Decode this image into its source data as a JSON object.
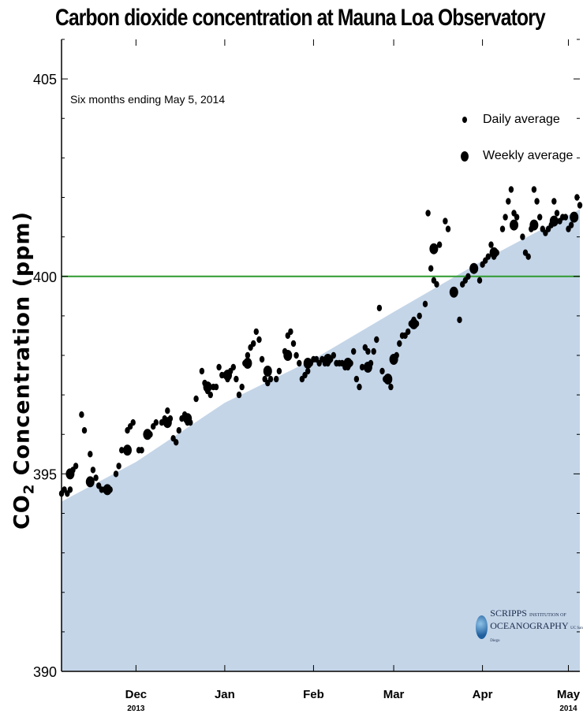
{
  "chart_data": {
    "type": "scatter",
    "title": "Carbon dioxide concentration at Mauna Loa Observatory",
    "subtitle": "Six months ending May 5, 2014",
    "ylabel_main": "CO",
    "ylabel_sub": "2",
    "ylabel_rest": " Concentration (ppm)",
    "ylim": [
      390,
      406
    ],
    "yticks": [
      390,
      395,
      400,
      405
    ],
    "xlim": [
      "2013-11-05",
      "2014-05-05"
    ],
    "xticks": [
      {
        "label": "Dec",
        "year": "2013",
        "date": "2013-12-01"
      },
      {
        "label": "Jan",
        "year": "",
        "date": "2014-01-01"
      },
      {
        "label": "Feb",
        "year": "",
        "date": "2014-02-01"
      },
      {
        "label": "Mar",
        "year": "",
        "date": "2014-03-01"
      },
      {
        "label": "Apr",
        "year": "",
        "date": "2014-04-01"
      },
      {
        "label": "May",
        "year": "2014",
        "date": "2014-05-01"
      }
    ],
    "reference_line": {
      "y": 400,
      "color": "#2e9a2e"
    },
    "trend_fill_color": "#c4d5e8",
    "trend": [
      {
        "date": "2013-11-05",
        "y": 394.3
      },
      {
        "date": "2013-12-01",
        "y": 395.3
      },
      {
        "date": "2014-01-01",
        "y": 396.8
      },
      {
        "date": "2014-02-01",
        "y": 397.9
      },
      {
        "date": "2014-03-01",
        "y": 399.1
      },
      {
        "date": "2014-04-01",
        "y": 400.4
      },
      {
        "date": "2014-05-05",
        "y": 401.7
      }
    ],
    "legend": {
      "position": "top-right"
    },
    "series": [
      {
        "name": "Daily average",
        "marker": "small",
        "points": [
          [
            "2013-11-05",
            394.5
          ],
          [
            "2013-11-06",
            394.6
          ],
          [
            "2013-11-07",
            394.5
          ],
          [
            "2013-11-08",
            394.6
          ],
          [
            "2013-11-09",
            395.1
          ],
          [
            "2013-11-10",
            395.2
          ],
          [
            "2013-11-12",
            396.5
          ],
          [
            "2013-11-13",
            396.1
          ],
          [
            "2013-11-15",
            395.5
          ],
          [
            "2013-11-16",
            395.1
          ],
          [
            "2013-11-17",
            394.9
          ],
          [
            "2013-11-18",
            394.7
          ],
          [
            "2013-11-19",
            394.6
          ],
          [
            "2013-11-20",
            394.6
          ],
          [
            "2013-11-21",
            394.6
          ],
          [
            "2013-11-22",
            394.6
          ],
          [
            "2013-11-24",
            395.0
          ],
          [
            "2013-11-25",
            395.2
          ],
          [
            "2013-11-26",
            395.6
          ],
          [
            "2013-11-28",
            396.1
          ],
          [
            "2013-11-29",
            396.2
          ],
          [
            "2013-11-30",
            396.3
          ],
          [
            "2013-12-02",
            395.6
          ],
          [
            "2013-12-03",
            395.6
          ],
          [
            "2013-12-05",
            396.0
          ],
          [
            "2013-12-06",
            396.0
          ],
          [
            "2013-12-07",
            396.2
          ],
          [
            "2013-12-08",
            396.3
          ],
          [
            "2013-12-10",
            396.3
          ],
          [
            "2013-12-11",
            396.4
          ],
          [
            "2013-12-12",
            396.6
          ],
          [
            "2013-12-13",
            396.4
          ],
          [
            "2013-12-14",
            395.9
          ],
          [
            "2013-12-15",
            395.8
          ],
          [
            "2013-12-16",
            396.1
          ],
          [
            "2013-12-17",
            396.4
          ],
          [
            "2013-12-18",
            396.5
          ],
          [
            "2013-12-19",
            396.3
          ],
          [
            "2013-12-20",
            396.3
          ],
          [
            "2013-12-22",
            396.9
          ],
          [
            "2013-12-24",
            397.6
          ],
          [
            "2013-12-25",
            397.3
          ],
          [
            "2013-12-26",
            397.1
          ],
          [
            "2013-12-27",
            397.0
          ],
          [
            "2013-12-28",
            397.2
          ],
          [
            "2013-12-29",
            397.2
          ],
          [
            "2013-12-30",
            397.7
          ],
          [
            "2013-12-31",
            397.5
          ],
          [
            "2014-01-01",
            397.5
          ],
          [
            "2014-01-02",
            397.4
          ],
          [
            "2014-01-03",
            397.6
          ],
          [
            "2014-01-04",
            397.7
          ],
          [
            "2014-01-05",
            397.4
          ],
          [
            "2014-01-06",
            397.0
          ],
          [
            "2014-01-07",
            397.2
          ],
          [
            "2014-01-08",
            397.8
          ],
          [
            "2014-01-09",
            398.0
          ],
          [
            "2014-01-10",
            398.2
          ],
          [
            "2014-01-11",
            398.3
          ],
          [
            "2014-01-12",
            398.6
          ],
          [
            "2014-01-13",
            398.4
          ],
          [
            "2014-01-14",
            397.9
          ],
          [
            "2014-01-15",
            397.4
          ],
          [
            "2014-01-16",
            397.3
          ],
          [
            "2014-01-17",
            397.4
          ],
          [
            "2014-01-19",
            397.4
          ],
          [
            "2014-01-20",
            397.6
          ],
          [
            "2014-01-22",
            398.1
          ],
          [
            "2014-01-23",
            398.5
          ],
          [
            "2014-01-24",
            398.6
          ],
          [
            "2014-01-25",
            398.3
          ],
          [
            "2014-01-26",
            398.0
          ],
          [
            "2014-01-27",
            397.8
          ],
          [
            "2014-01-28",
            397.4
          ],
          [
            "2014-01-29",
            397.5
          ],
          [
            "2014-01-30",
            397.6
          ],
          [
            "2014-01-31",
            397.8
          ],
          [
            "2014-02-01",
            397.9
          ],
          [
            "2014-02-02",
            397.9
          ],
          [
            "2014-02-03",
            397.8
          ],
          [
            "2014-02-04",
            397.9
          ],
          [
            "2014-02-05",
            397.8
          ],
          [
            "2014-02-06",
            397.8
          ],
          [
            "2014-02-07",
            397.9
          ],
          [
            "2014-02-08",
            398.0
          ],
          [
            "2014-02-09",
            397.8
          ],
          [
            "2014-02-10",
            397.8
          ],
          [
            "2014-02-11",
            397.8
          ],
          [
            "2014-02-12",
            397.7
          ],
          [
            "2014-02-13",
            397.7
          ],
          [
            "2014-02-14",
            397.8
          ],
          [
            "2014-02-15",
            398.1
          ],
          [
            "2014-02-16",
            397.4
          ],
          [
            "2014-02-17",
            397.2
          ],
          [
            "2014-02-18",
            397.7
          ],
          [
            "2014-02-19",
            398.2
          ],
          [
            "2014-02-20",
            398.1
          ],
          [
            "2014-02-21",
            397.8
          ],
          [
            "2014-02-22",
            398.1
          ],
          [
            "2014-02-23",
            398.4
          ],
          [
            "2014-02-24",
            399.2
          ],
          [
            "2014-02-25",
            397.6
          ],
          [
            "2014-02-26",
            397.4
          ],
          [
            "2014-02-27",
            397.4
          ],
          [
            "2014-02-28",
            397.2
          ],
          [
            "2014-03-02",
            398.0
          ],
          [
            "2014-03-03",
            398.3
          ],
          [
            "2014-03-04",
            398.5
          ],
          [
            "2014-03-05",
            398.5
          ],
          [
            "2014-03-06",
            398.6
          ],
          [
            "2014-03-07",
            398.8
          ],
          [
            "2014-03-08",
            398.9
          ],
          [
            "2014-03-09",
            398.8
          ],
          [
            "2014-03-10",
            399.0
          ],
          [
            "2014-03-12",
            399.3
          ],
          [
            "2014-03-13",
            401.6
          ],
          [
            "2014-03-14",
            400.2
          ],
          [
            "2014-03-15",
            399.9
          ],
          [
            "2014-03-16",
            399.8
          ],
          [
            "2014-03-17",
            400.8
          ],
          [
            "2014-03-19",
            401.4
          ],
          [
            "2014-03-20",
            401.2
          ],
          [
            "2014-03-24",
            398.9
          ],
          [
            "2014-03-25",
            399.8
          ],
          [
            "2014-03-26",
            399.9
          ],
          [
            "2014-03-27",
            400.0
          ],
          [
            "2014-03-31",
            399.9
          ],
          [
            "2014-04-01",
            400.3
          ],
          [
            "2014-04-02",
            400.4
          ],
          [
            "2014-04-03",
            400.5
          ],
          [
            "2014-04-04",
            400.8
          ],
          [
            "2014-04-05",
            400.5
          ],
          [
            "2014-04-06",
            400.6
          ],
          [
            "2014-04-08",
            401.2
          ],
          [
            "2014-04-09",
            401.5
          ],
          [
            "2014-04-10",
            401.9
          ],
          [
            "2014-04-11",
            402.2
          ],
          [
            "2014-04-12",
            401.6
          ],
          [
            "2014-04-13",
            401.5
          ],
          [
            "2014-04-15",
            401.0
          ],
          [
            "2014-04-16",
            400.6
          ],
          [
            "2014-04-17",
            400.5
          ],
          [
            "2014-04-18",
            401.2
          ],
          [
            "2014-04-19",
            402.2
          ],
          [
            "2014-04-20",
            401.9
          ],
          [
            "2014-04-21",
            401.5
          ],
          [
            "2014-04-22",
            401.2
          ],
          [
            "2014-04-23",
            401.1
          ],
          [
            "2014-04-24",
            401.2
          ],
          [
            "2014-04-25",
            401.3
          ],
          [
            "2014-04-26",
            401.9
          ],
          [
            "2014-04-27",
            401.6
          ],
          [
            "2014-04-28",
            401.4
          ],
          [
            "2014-04-29",
            401.5
          ],
          [
            "2014-04-30",
            401.5
          ],
          [
            "2014-05-01",
            401.2
          ],
          [
            "2014-05-02",
            401.3
          ],
          [
            "2014-05-03",
            401.5
          ],
          [
            "2014-05-04",
            402.0
          ],
          [
            "2014-05-05",
            401.8
          ]
        ]
      },
      {
        "name": "Weekly average",
        "marker": "large",
        "points": [
          [
            "2013-11-08",
            395.0
          ],
          [
            "2013-11-15",
            394.8
          ],
          [
            "2013-11-21",
            394.6
          ],
          [
            "2013-11-28",
            395.6
          ],
          [
            "2013-12-05",
            396.0
          ],
          [
            "2013-12-12",
            396.3
          ],
          [
            "2013-12-19",
            396.4
          ],
          [
            "2013-12-26",
            397.2
          ],
          [
            "2014-01-02",
            397.5
          ],
          [
            "2014-01-09",
            397.8
          ],
          [
            "2014-01-16",
            397.6
          ],
          [
            "2014-01-23",
            398.0
          ],
          [
            "2014-01-30",
            397.8
          ],
          [
            "2014-02-06",
            397.9
          ],
          [
            "2014-02-13",
            397.8
          ],
          [
            "2014-02-20",
            397.7
          ],
          [
            "2014-02-27",
            397.4
          ],
          [
            "2014-03-01",
            397.9
          ],
          [
            "2014-03-08",
            398.8
          ],
          [
            "2014-03-15",
            400.7
          ],
          [
            "2014-03-22",
            399.6
          ],
          [
            "2014-03-29",
            400.2
          ],
          [
            "2014-04-05",
            400.6
          ],
          [
            "2014-04-12",
            401.3
          ],
          [
            "2014-04-19",
            401.3
          ],
          [
            "2014-04-26",
            401.4
          ],
          [
            "2014-05-03",
            401.5
          ]
        ]
      }
    ],
    "logo": {
      "line1_big": "SCRIPPS",
      "line1_small": "INSTITUTION OF",
      "line2_big": "OCEANOGRAPHY",
      "line2_small": "UC San Diego"
    }
  }
}
